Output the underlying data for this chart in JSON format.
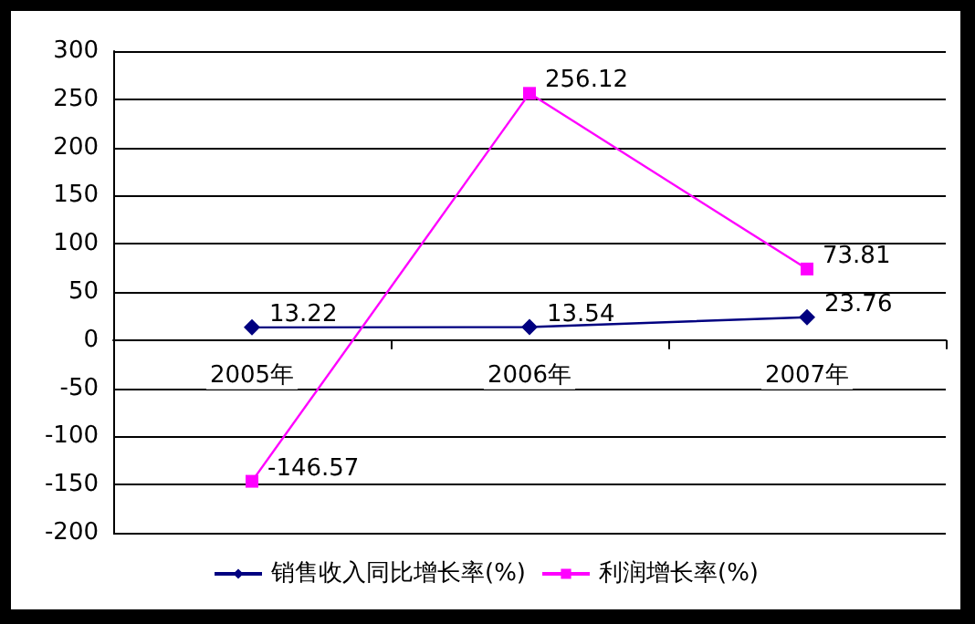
{
  "chart_data": {
    "type": "line",
    "categories": [
      "2005年",
      "2006年",
      "2007年"
    ],
    "series": [
      {
        "name": "销售收入同比增长率(%)",
        "color": "#000080",
        "marker": "diamond",
        "values": [
          13.22,
          13.54,
          23.76
        ]
      },
      {
        "name": "利润增长率(%)",
        "color": "#ff00ff",
        "marker": "square",
        "values": [
          -146.57,
          256.12,
          73.81
        ]
      }
    ],
    "ylim": [
      -200,
      300
    ],
    "yticks": [
      -200,
      -150,
      -100,
      -50,
      0,
      50,
      100,
      150,
      200,
      250,
      300
    ],
    "grid": "y",
    "legend": "bottom",
    "data_labels": true
  }
}
